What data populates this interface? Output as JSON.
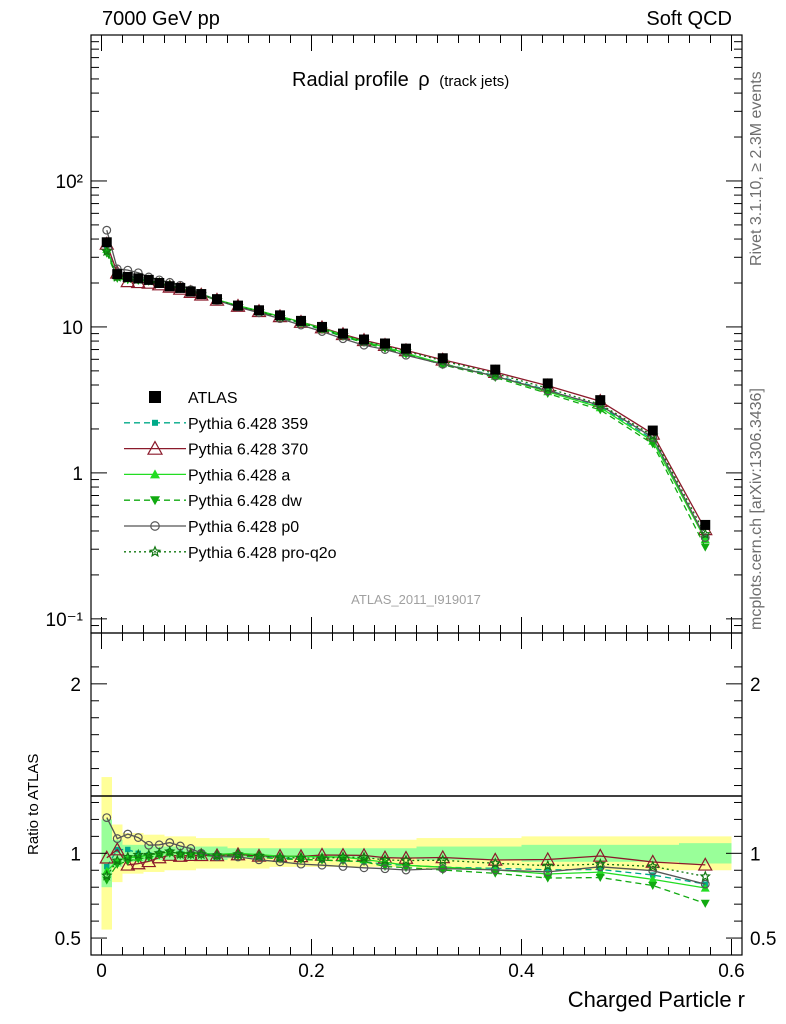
{
  "header": {
    "energy_label": "7000 GeV pp",
    "category_label": "Soft QCD"
  },
  "side": {
    "rivet_label": "Rivet 3.1.10, ≥ 2.3M events",
    "source_label": "mcplots.cern.ch [arXiv:1306.3436]"
  },
  "chart_data": {
    "type": "line",
    "title": "Radial profile",
    "title_symbol": "ρ",
    "title_suffix": "(track jets)",
    "analysis_label": "ATLAS_2011_I919017",
    "xlabel": "Charged Particle r",
    "ylabel_ratio": "Ratio to ATLAS",
    "xlim": [
      -0.01,
      0.61
    ],
    "ylim_main": [
      0.08,
      1000
    ],
    "yscale_main": "log",
    "ylim_ratio": [
      0.4,
      2.3
    ],
    "grid": false,
    "legend_position": "middle-left",
    "x_ticks": [
      "0",
      "0.2",
      "0.4",
      "0.6"
    ],
    "main_y_ticks": [
      "10⁻¹",
      "1",
      "10",
      "10²"
    ],
    "ratio_y_ticks": [
      "0.5",
      "1",
      "2"
    ],
    "x": [
      0.005,
      0.015,
      0.025,
      0.035,
      0.045,
      0.055,
      0.065,
      0.075,
      0.085,
      0.095,
      0.11,
      0.13,
      0.15,
      0.17,
      0.19,
      0.21,
      0.23,
      0.25,
      0.27,
      0.29,
      0.325,
      0.375,
      0.425,
      0.475,
      0.525,
      0.575
    ],
    "series": [
      {
        "name": "ATLAS",
        "color": "#000000",
        "marker": "square",
        "dash": "none",
        "values": [
          38,
          23,
          22,
          21.5,
          21,
          20,
          19,
          18.5,
          17.5,
          16.8,
          15.5,
          14,
          13,
          12,
          11,
          10,
          9,
          8.2,
          7.7,
          7.1,
          6.1,
          5.1,
          4.1,
          3.15,
          1.95,
          0.44
        ]
      },
      {
        "name": "Pythia 6.428 359",
        "color": "#00aa88",
        "marker": "smallsquare",
        "dash": "6,4",
        "values": [
          35,
          23.5,
          22.5,
          21.5,
          20.8,
          20,
          19.2,
          18.5,
          17.5,
          16.8,
          15.4,
          13.9,
          12.8,
          11.7,
          10.6,
          9.6,
          8.6,
          7.8,
          7.2,
          6.6,
          5.6,
          4.65,
          3.7,
          2.85,
          1.7,
          0.36
        ]
      },
      {
        "name": "Pythia 6.428 370",
        "color": "#8b1a2b",
        "marker": "triangle-open",
        "dash": "none",
        "values": [
          37,
          23.5,
          20.5,
          20.2,
          20,
          19.5,
          18.8,
          18.2,
          17.3,
          16.6,
          15.3,
          13.9,
          12.8,
          11.8,
          10.8,
          9.9,
          8.9,
          8.1,
          7.5,
          6.9,
          5.95,
          4.9,
          3.95,
          3.1,
          1.85,
          0.41
        ]
      },
      {
        "name": "Pythia 6.428 a",
        "color": "#22dd22",
        "marker": "triangle",
        "dash": "none",
        "values": [
          34,
          22,
          21.5,
          21,
          20.8,
          20,
          19.1,
          18.5,
          17.5,
          16.8,
          15.4,
          14,
          12.9,
          11.8,
          10.8,
          9.8,
          8.8,
          7.9,
          7.3,
          6.6,
          5.6,
          4.6,
          3.6,
          2.8,
          1.65,
          0.35
        ]
      },
      {
        "name": "Pythia 6.428 dw",
        "color": "#11aa11",
        "marker": "triangle-down",
        "dash": "6,4",
        "values": [
          32,
          21.5,
          21,
          20.8,
          20.5,
          19.8,
          19,
          18.3,
          17.3,
          16.6,
          15.2,
          13.8,
          12.7,
          11.6,
          10.6,
          9.6,
          8.6,
          7.8,
          7.1,
          6.5,
          5.5,
          4.5,
          3.5,
          2.7,
          1.58,
          0.31
        ]
      },
      {
        "name": "Pythia 6.428 p0",
        "color": "#555555",
        "marker": "circle-open",
        "dash": "none",
        "values": [
          46,
          25,
          24.5,
          23.5,
          22,
          21,
          20.2,
          19.3,
          18,
          16.8,
          15.2,
          13.7,
          12.5,
          11.4,
          10.3,
          9.3,
          8.3,
          7.5,
          7,
          6.4,
          5.55,
          4.6,
          3.65,
          2.9,
          1.75,
          0.36
        ]
      },
      {
        "name": "Pythia 6.428 pro-q2o",
        "color": "#117711",
        "marker": "star-open",
        "dash": "2,3",
        "values": [
          33,
          22,
          21.5,
          21.3,
          20.8,
          20,
          19.2,
          18.4,
          17.4,
          16.7,
          15.3,
          13.9,
          12.8,
          11.7,
          10.7,
          9.7,
          8.8,
          8,
          7.4,
          6.8,
          5.85,
          4.8,
          3.8,
          2.95,
          1.8,
          0.38
        ]
      }
    ]
  }
}
